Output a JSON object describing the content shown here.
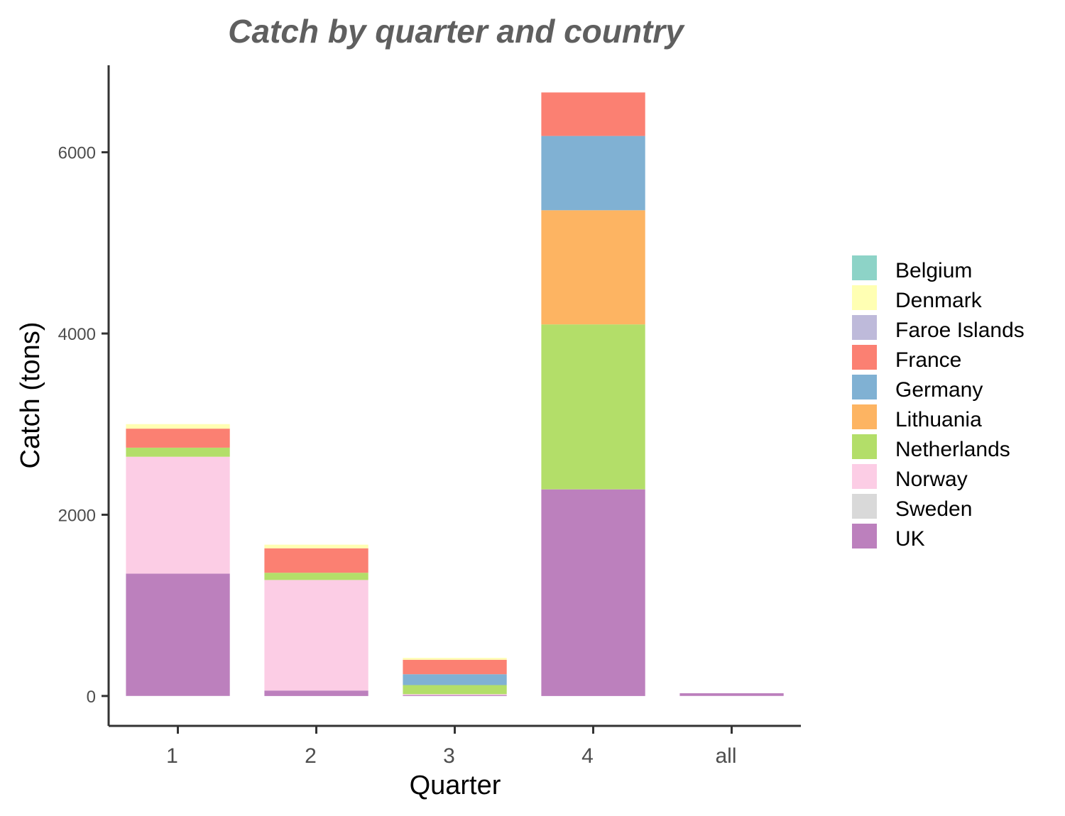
{
  "chart_data": {
    "type": "bar",
    "stacked": true,
    "title": "Catch by quarter and country",
    "xlabel": "Quarter",
    "ylabel": "Catch (tons)",
    "categories": [
      "1",
      "2",
      "3",
      "4",
      "all"
    ],
    "yticks": [
      0,
      2000,
      4000,
      6000
    ],
    "ylim": [
      -330,
      6960
    ],
    "grid": false,
    "legend_position": "right",
    "series": [
      {
        "name": "Belgium",
        "color": "#8DD3C7",
        "values": [
          0,
          0,
          0,
          0,
          0
        ]
      },
      {
        "name": "Denmark",
        "color": "#FFFFB3",
        "values": [
          50,
          40,
          20,
          0,
          0
        ]
      },
      {
        "name": "Faroe Islands",
        "color": "#BEBADA",
        "values": [
          0,
          0,
          0,
          0,
          0
        ]
      },
      {
        "name": "France",
        "color": "#FB8072",
        "values": [
          210,
          270,
          160,
          480,
          0
        ]
      },
      {
        "name": "Germany",
        "color": "#80B1D3",
        "values": [
          0,
          0,
          120,
          820,
          0
        ]
      },
      {
        "name": "Lithuania",
        "color": "#FDB462",
        "values": [
          0,
          0,
          0,
          1260,
          0
        ]
      },
      {
        "name": "Netherlands",
        "color": "#B3DE69",
        "values": [
          100,
          80,
          100,
          1820,
          0
        ]
      },
      {
        "name": "Norway",
        "color": "#FCCDE5",
        "values": [
          1290,
          1220,
          10,
          0,
          0
        ]
      },
      {
        "name": "Sweden",
        "color": "#D9D9D9",
        "values": [
          0,
          0,
          0,
          0,
          0
        ]
      },
      {
        "name": "UK",
        "color": "#BC80BD",
        "values": [
          1350,
          60,
          10,
          2280,
          30
        ]
      }
    ]
  }
}
